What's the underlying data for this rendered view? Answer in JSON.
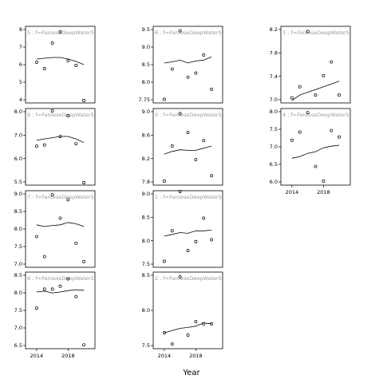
{
  "chart_data": {
    "type": "scatter",
    "xlabel": "Year",
    "x_range": [
      2013,
      2021
    ],
    "x_ticks": [
      2014,
      2018
    ],
    "panels": [
      {
        "title": "5 : f=FaroeseDeepWaterS",
        "ylim": [
          3.7,
          8.2
        ],
        "yticks": [
          "4",
          "5",
          "6",
          "7",
          "8"
        ],
        "points": [
          [
            2014,
            6.1
          ],
          [
            2015,
            5.7
          ],
          [
            2016,
            7.3
          ],
          [
            2017,
            8.0
          ],
          [
            2018,
            6.2
          ],
          [
            2019,
            5.9
          ],
          [
            2020,
            3.7
          ]
        ],
        "smooth": [
          [
            2014,
            6.3
          ],
          [
            2015,
            6.35
          ],
          [
            2016,
            6.4
          ],
          [
            2017,
            6.4
          ],
          [
            2018,
            6.3
          ],
          [
            2019,
            6.15
          ],
          [
            2020,
            5.95
          ]
        ]
      },
      {
        "title": "6 : f=FaroeseDeepWaterS",
        "ylim": [
          7.72,
          9.5
        ],
        "yticks": [
          "7.75",
          "8.0",
          "8.5",
          "9.0",
          "9.5"
        ],
        "points": [
          [
            2014,
            7.75
          ],
          [
            2015,
            8.5
          ],
          [
            2016,
            9.45
          ],
          [
            2017,
            8.3
          ],
          [
            2018,
            8.4
          ],
          [
            2019,
            8.85
          ],
          [
            2020,
            8.0
          ]
        ],
        "smooth": [
          [
            2014,
            8.65
          ],
          [
            2015,
            8.68
          ],
          [
            2016,
            8.72
          ],
          [
            2017,
            8.65
          ],
          [
            2018,
            8.7
          ],
          [
            2019,
            8.72
          ],
          [
            2020,
            8.8
          ]
        ]
      },
      {
        "title": "3 : f=FaroeseDeepWaterS",
        "ylim": [
          6.95,
          8.25
        ],
        "yticks": [
          "7.0",
          "7.4",
          "7.8",
          "8.2"
        ],
        "points": [
          [
            2014,
            7.0
          ],
          [
            2015,
            7.2
          ],
          [
            2016,
            8.2
          ],
          [
            2017,
            7.05
          ],
          [
            2018,
            7.4
          ],
          [
            2019,
            7.65
          ],
          [
            2020,
            7.05
          ]
        ],
        "smooth": [
          [
            2014,
            6.95
          ],
          [
            2015,
            7.05
          ],
          [
            2016,
            7.1
          ],
          [
            2017,
            7.15
          ],
          [
            2018,
            7.2
          ],
          [
            2019,
            7.25
          ],
          [
            2020,
            7.3
          ]
        ]
      },
      {
        "title": "9 : f=FaroeseDeepWaterS",
        "ylim": [
          5.55,
          8.5
        ],
        "yticks": [
          "5.5",
          "6.0",
          "7.0",
          "8.0"
        ],
        "points": [
          [
            2014,
            7.05
          ],
          [
            2015,
            7.1
          ],
          [
            2016,
            8.5
          ],
          [
            2017,
            7.45
          ],
          [
            2018,
            8.3
          ],
          [
            2019,
            7.15
          ],
          [
            2020,
            5.55
          ]
        ],
        "smooth": [
          [
            2014,
            7.3
          ],
          [
            2015,
            7.35
          ],
          [
            2016,
            7.4
          ],
          [
            2017,
            7.45
          ],
          [
            2018,
            7.45
          ],
          [
            2019,
            7.35
          ],
          [
            2020,
            7.2
          ]
        ]
      },
      {
        "title": "0 : f=FaroeseDeepWaterS",
        "ylim": [
          7.72,
          9.05
        ],
        "yticks": [
          "7.8",
          "8.2",
          "8.6",
          "9.0"
        ],
        "points": [
          [
            2014,
            7.75
          ],
          [
            2015,
            8.4
          ],
          [
            2016,
            9.0
          ],
          [
            2017,
            8.65
          ],
          [
            2018,
            8.15
          ],
          [
            2019,
            8.5
          ],
          [
            2020,
            7.85
          ]
        ],
        "smooth": [
          [
            2014,
            8.25
          ],
          [
            2015,
            8.3
          ],
          [
            2016,
            8.33
          ],
          [
            2017,
            8.32
          ],
          [
            2018,
            8.32
          ],
          [
            2019,
            8.36
          ],
          [
            2020,
            8.4
          ]
        ]
      },
      {
        "title": "4 : f=FaroeseDeepWaterS",
        "ylim": [
          5.85,
          8.05
        ],
        "yticks": [
          "6.0",
          "6.5",
          "7.0",
          "7.5",
          "8.0"
        ],
        "points": [
          [
            2014,
            7.15
          ],
          [
            2015,
            7.4
          ],
          [
            2016,
            8.0
          ],
          [
            2017,
            6.35
          ],
          [
            2018,
            5.9
          ],
          [
            2019,
            7.45
          ],
          [
            2020,
            7.25
          ]
        ],
        "smooth": [
          [
            2014,
            6.6
          ],
          [
            2015,
            6.65
          ],
          [
            2016,
            6.75
          ],
          [
            2017,
            6.8
          ],
          [
            2018,
            6.92
          ],
          [
            2019,
            6.97
          ],
          [
            2020,
            7.0
          ]
        ]
      },
      {
        "title": "7 : f=FaroeseDeepWaterS",
        "ylim": [
          6.85,
          9.0
        ],
        "yticks": [
          "7.0",
          "7.5",
          "8.0",
          "8.5",
          "9.0"
        ],
        "points": [
          [
            2014,
            7.7
          ],
          [
            2015,
            7.1
          ],
          [
            2016,
            8.95
          ],
          [
            2017,
            8.25
          ],
          [
            2018,
            8.8
          ],
          [
            2019,
            7.5
          ],
          [
            2020,
            6.95
          ]
        ],
        "smooth": [
          [
            2014,
            8.05
          ],
          [
            2015,
            8.0
          ],
          [
            2016,
            8.03
          ],
          [
            2017,
            8.05
          ],
          [
            2018,
            8.12
          ],
          [
            2019,
            8.08
          ],
          [
            2020,
            8.0
          ]
        ]
      },
      {
        "title": "1 : f=FaroeseDeepWaterS",
        "ylim": [
          7.0,
          9.0
        ],
        "yticks": [
          "7.5",
          "8.0",
          "8.5",
          "9.0"
        ],
        "points": [
          [
            2014,
            7.1
          ],
          [
            2015,
            7.95
          ],
          [
            2016,
            9.1
          ],
          [
            2017,
            7.4
          ],
          [
            2018,
            7.65
          ],
          [
            2019,
            8.3
          ],
          [
            2020,
            7.7
          ]
        ],
        "smooth": [
          [
            2014,
            7.8
          ],
          [
            2015,
            7.85
          ],
          [
            2016,
            7.9
          ],
          [
            2017,
            7.88
          ],
          [
            2018,
            7.95
          ],
          [
            2019,
            7.95
          ],
          [
            2020,
            7.97
          ]
        ]
      },
      {
        "title": "8 : f=FaroeseDeepWaterS",
        "ylim": [
          6.45,
          8.9
        ],
        "yticks": [
          "6.5",
          "7.0",
          "7.5",
          "8.0",
          "8.5"
        ],
        "points": [
          [
            2014,
            7.75
          ],
          [
            2015,
            8.4
          ],
          [
            2016,
            8.4
          ],
          [
            2017,
            8.5
          ],
          [
            2018,
            8.75
          ],
          [
            2019,
            8.15
          ],
          [
            2020,
            6.5
          ]
        ],
        "smooth": [
          [
            2014,
            8.3
          ],
          [
            2015,
            8.33
          ],
          [
            2016,
            8.27
          ],
          [
            2017,
            8.3
          ],
          [
            2018,
            8.35
          ],
          [
            2019,
            8.38
          ],
          [
            2020,
            8.36
          ]
        ]
      },
      {
        "title": "2 : f=FaroeseDeepWaterS",
        "ylim": [
          7.1,
          8.7
        ],
        "yticks": [
          "7.5",
          "8.0",
          "8.5"
        ],
        "points": [
          [
            2014,
            7.4
          ],
          [
            2015,
            7.15
          ],
          [
            2016,
            8.65
          ],
          [
            2017,
            7.35
          ],
          [
            2018,
            7.65
          ],
          [
            2019,
            7.6
          ],
          [
            2020,
            7.6
          ]
        ],
        "smooth": [
          [
            2014,
            7.4
          ],
          [
            2015,
            7.45
          ],
          [
            2016,
            7.5
          ],
          [
            2017,
            7.52
          ],
          [
            2018,
            7.55
          ],
          [
            2019,
            7.62
          ],
          [
            2020,
            7.6
          ]
        ]
      }
    ]
  }
}
